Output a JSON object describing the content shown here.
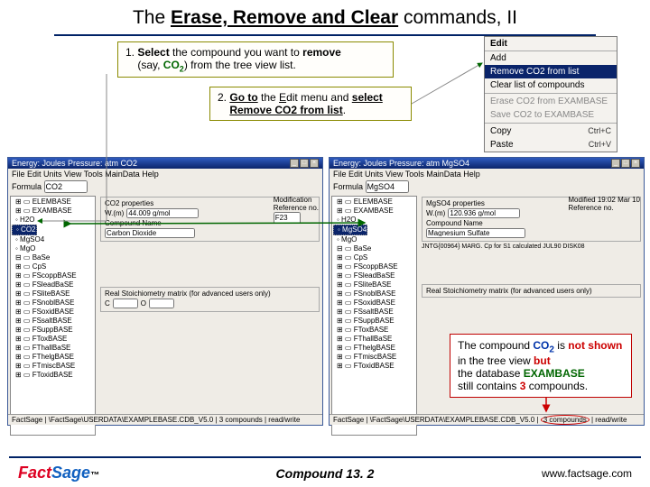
{
  "title": {
    "pre": "The ",
    "key": "Erase, Remove and Clear",
    "post": " commands, II"
  },
  "callout1": {
    "num": "1.",
    "t1": "Select",
    "t2": " the compound you want to ",
    "t3": "remove",
    "t4": "(say, ",
    "formula": "CO",
    "sub": "2",
    "t5": ") from the tree view list."
  },
  "callout2": {
    "num": "2.",
    "t1": "Go to",
    "t2": " the ",
    "euline": "E",
    "erest": "dit menu and ",
    "t3": "select",
    "t4": "Remove CO2 from list",
    "t5": "."
  },
  "menu": {
    "edit": "Edit",
    "add": "Add",
    "remove": "Remove CO2 from list",
    "clear": "Clear list of compounds",
    "erase": "Erase CO2 from EXAMBASE",
    "save": "Save CO2 to EXAMBASE",
    "copy": "Copy",
    "paste": "Paste",
    "scopy": "Ctrl+C",
    "spaste": "Ctrl+V"
  },
  "app_left": {
    "title": "Energy: Joules Pressure: atm  CO2",
    "menubar": "File   Edit   Units   View   Tools   MainData   Help",
    "formula_lbl": "Formula",
    "formula_val": "CO2",
    "tree": [
      "⊞ ▭ ELEMBASE",
      "⊞ ▭ EXAMBASE",
      "    ◦ H2O",
      "    ◦ CO2",
      "    ◦ MgSO4",
      "    ◦ MgO",
      "⊟ ▭ BaSe",
      "  ⊞ ▭ CpS",
      "  ⊞ ▭ FScoppBASE",
      "  ⊞ ▭ FSleadBaSE",
      "  ⊞ ▭ FSliteBASE",
      "  ⊞ ▭ FSnoblBASE",
      "  ⊞ ▭ FSoxidBASE",
      "  ⊞ ▭ FSsaltBASE",
      "  ⊞ ▭ FSuppBASE",
      "  ⊞ ▭ FToxBASE",
      "  ⊞ ▭ FThallBaSE",
      "  ⊞ ▭ FThelgBASE",
      "  ⊞ ▭ FTmiscBASE",
      "  ⊞ ▭ FToxidBASE"
    ],
    "sel_idx": 3,
    "prop_title": "CO2 properties",
    "wt_lbl": "W.(m)",
    "wt_val": "44.009 g/mol",
    "name_lbl": "Compound Name",
    "name_val": "Carbon Dioxide",
    "modif": "Modification",
    "ref": "Reference no.",
    "ref_val": "F23",
    "stoich": "Real Stoichiometry matrix (for advanced users only)",
    "c": "C",
    "o": "O",
    "status": "FactSage     | \\FactSage\\USERDATA\\EXAMPLEBASE.CDB_V5.0 | 3 compounds | read/write"
  },
  "app_right": {
    "title": "Energy: Joules Pressure: atm  MgSO4",
    "menubar": "File   Edit   Units   View   Tools   MainData   Help",
    "formula_lbl": "Formula",
    "formula_val": "MgSO4",
    "tree": [
      "⊞ ▭ ELEMBASE",
      "⊞ ▭ EXAMBASE",
      "    ◦ H2O",
      "    ◦ MgSO4",
      "    ◦ MgO",
      "⊟ ▭ BaSe",
      "  ⊞ ▭ CpS",
      "  ⊞ ▭ FScoppBASE",
      "  ⊞ ▭ FSleadBaSE",
      "  ⊞ ▭ FSliteBASE",
      "  ⊞ ▭ FSnoblBASE",
      "  ⊞ ▭ FSoxidBASE",
      "  ⊞ ▭ FSsaltBASE",
      "  ⊞ ▭ FSuppBASE",
      "  ⊞ ▭ FToxBASE",
      "  ⊞ ▭ FThallBaSE",
      "  ⊞ ▭ FThelgBASE",
      "  ⊞ ▭ FTmiscBASE",
      "  ⊞ ▭ FToxidBASE"
    ],
    "sel_idx": 3,
    "prop_title": "MgSO4 properties",
    "wt_lbl": "W.(m)",
    "wt_val": "120.936 g/mol",
    "name_lbl": "Compound Name",
    "name_val": "Magnesium Sulfate",
    "modif": "Modified  19:02 Mar 10",
    "ref": "Reference no.",
    "jnt": "JNTG{00964} MARG. Cp for S1 calculated JUL90 DISK08",
    "stoich": "Real Stoichiometry matrix (for advanced users only)",
    "status_pre": "FactSage     | \\FactSage\\USERDATA\\EXAMPLEBASE.CDB_V5.0 | ",
    "status_circ": "3 compounds",
    "status_post": " | read/write"
  },
  "callout3": {
    "t1": "The compound ",
    "formula": "CO",
    "sub": "2",
    "t2": " is ",
    "t3": "not shown",
    "t4": " in the tree view ",
    "t5": "but",
    "t6": "the database ",
    "t7": "EXAMBASE",
    "t8": "still contains ",
    "t9": "3",
    "t10": " compounds."
  },
  "footer": {
    "center": "Compound   13. 2",
    "link": "www.factsage.com"
  }
}
